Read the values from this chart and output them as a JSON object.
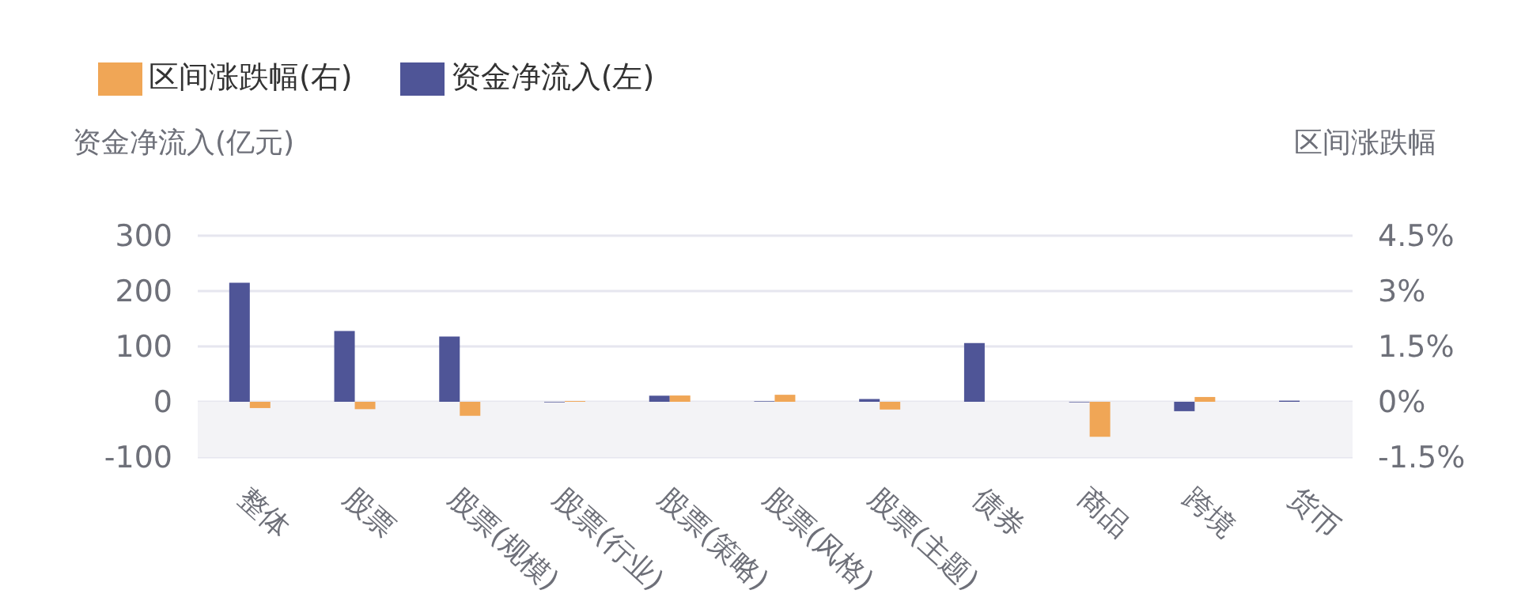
{
  "chart_data": {
    "type": "bar",
    "ylabel": "资金净流入(亿元)",
    "y2label": "区间涨跌幅",
    "categories": [
      "整体",
      "股票",
      "股票(规模)",
      "股票(行业)",
      "股票(策略)",
      "股票(风格)",
      "股票(主题)",
      "债券",
      "商品",
      "跨境",
      "货币"
    ],
    "series": [
      {
        "name": "资金净流入(左)",
        "color": "#4f5597",
        "values": [
          215,
          128,
          118,
          -1,
          11,
          1,
          5,
          106,
          -1,
          -17,
          2
        ]
      },
      {
        "name": "区间涨跌幅(右)",
        "color": "#f0a656",
        "axis": "y2",
        "values": [
          -0.17,
          -0.2,
          -0.38,
          0.02,
          0.17,
          0.19,
          -0.21,
          0,
          -0.95,
          0.13,
          0
        ]
      }
    ],
    "ylim": [
      -100,
      300
    ],
    "yticks": [
      -100,
      0,
      100,
      200,
      300
    ],
    "y2lim": [
      -1.5,
      4.5
    ],
    "y2ticks": [
      {
        "value": -1.5,
        "label": "-1.5%"
      },
      {
        "value": 0,
        "label": "0%"
      },
      {
        "value": 1.5,
        "label": "1.5%"
      },
      {
        "value": 3,
        "label": "3%"
      },
      {
        "value": 4.5,
        "label": "4.5%"
      }
    ],
    "bands": [
      {
        "axis": "y",
        "from": -100,
        "to": 0,
        "color": "#f3f3f6"
      }
    ],
    "grid": "y",
    "legend": "top left"
  }
}
